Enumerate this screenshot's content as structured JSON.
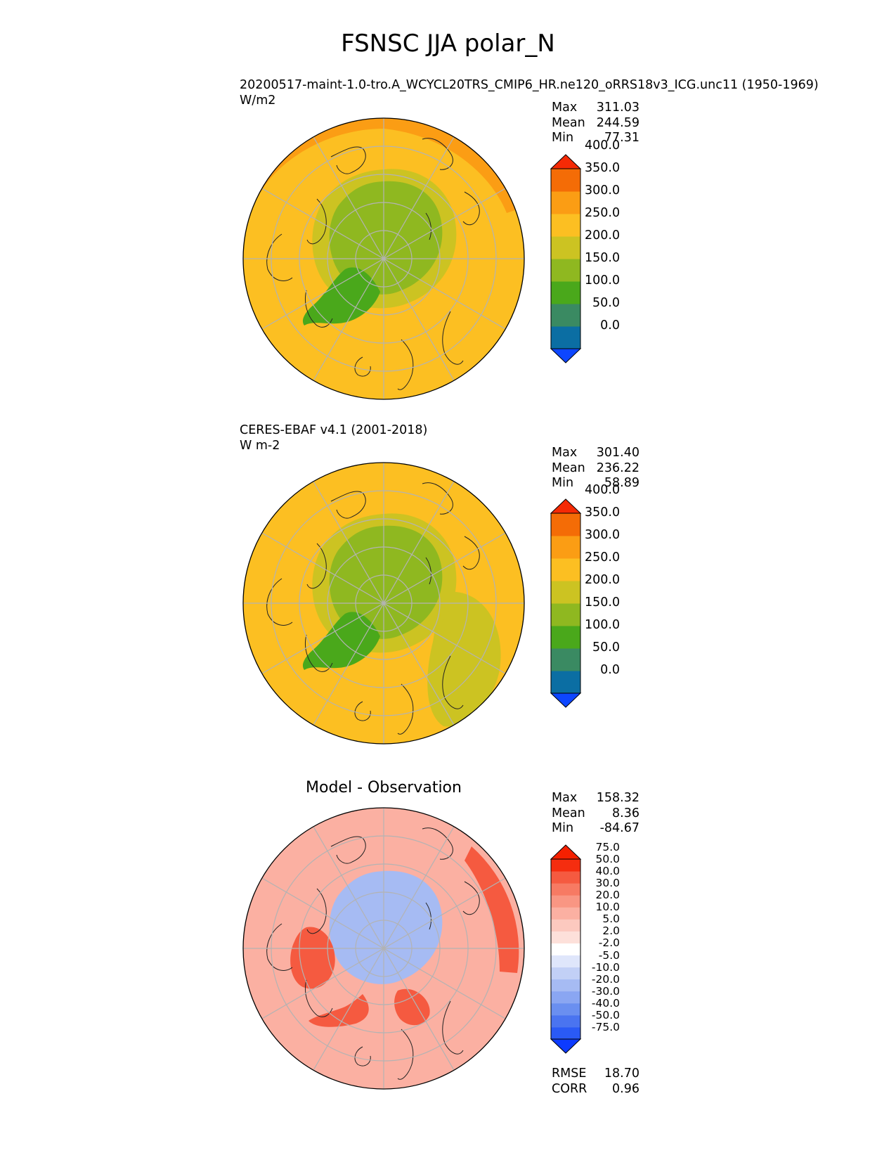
{
  "figure": {
    "title": "FSNSC JJA polar_N"
  },
  "chart_data": [
    {
      "type": "heatmap",
      "projection": "north-polar-stereographic",
      "title_line1": "20200517-maint-1.0-tro.A_WCYCL20TRS_CMIP6_HR.ne120_oRRS18v3_ICG.unc11 (1950-1969)",
      "units": "W/m2",
      "stats": {
        "max": "311.03",
        "mean": "244.59",
        "min": "77.31"
      },
      "levels": [
        "0.0",
        "50.0",
        "100.0",
        "150.0",
        "200.0",
        "250.0",
        "300.0",
        "350.0",
        "400.0"
      ],
      "colors": [
        "#0d46ff",
        "#0b6ea3",
        "#3a8a62",
        "#4aa81b",
        "#8fb820",
        "#ccc322",
        "#fcbf22",
        "#fb9d14",
        "#f46c06",
        "#f52a05"
      ],
      "regions": {
        "ocean_field": 250,
        "outer_ring": 300,
        "arctic_core": 150,
        "greenland": 100,
        "arctic_fringe": 200
      }
    },
    {
      "type": "heatmap",
      "projection": "north-polar-stereographic",
      "title_line1": "CERES-EBAF v4.1 (2001-2018)",
      "units": "W m-2",
      "stats": {
        "max": "301.40",
        "mean": "236.22",
        "min": "58.89"
      },
      "levels": [
        "0.0",
        "50.0",
        "100.0",
        "150.0",
        "200.0",
        "250.0",
        "300.0",
        "350.0",
        "400.0"
      ],
      "colors": [
        "#0d46ff",
        "#0b6ea3",
        "#3a8a62",
        "#4aa81b",
        "#8fb820",
        "#ccc322",
        "#fcbf22",
        "#fb9d14",
        "#f46c06",
        "#f52a05"
      ],
      "regions": {
        "ocean_field": 250,
        "arctic_core": 150,
        "greenland": 100,
        "arctic_fringe": 200,
        "east_siberia": 200
      }
    },
    {
      "type": "heatmap",
      "projection": "north-polar-stereographic",
      "title": "Model - Observation",
      "stats": {
        "max": "158.32",
        "mean": "8.36",
        "min": "-84.67"
      },
      "metrics": {
        "rmse": "18.70",
        "corr": "0.96"
      },
      "levels": [
        "-75.0",
        "-50.0",
        "-40.0",
        "-30.0",
        "-20.0",
        "-10.0",
        "-5.0",
        "-2.0",
        "2.0",
        "5.0",
        "10.0",
        "20.0",
        "30.0",
        "40.0",
        "50.0",
        "75.0"
      ],
      "colors": [
        "#0d3bff",
        "#2a5af5",
        "#4a74f0",
        "#6a8ff0",
        "#8aa6f2",
        "#a6bbf3",
        "#c2d0f6",
        "#dfe6fb",
        "#ffffff",
        "#fde0da",
        "#fcc9bf",
        "#fbb0a2",
        "#f99683",
        "#f77a63",
        "#f55a40",
        "#f52d0f",
        "#f52000"
      ],
      "regions": {
        "background": 10,
        "arctic_core": -20,
        "greenland_rim": 40
      }
    }
  ],
  "labels": {
    "max": "Max",
    "mean": "Mean",
    "min": "Min",
    "rmse": "RMSE",
    "corr": "CORR"
  }
}
